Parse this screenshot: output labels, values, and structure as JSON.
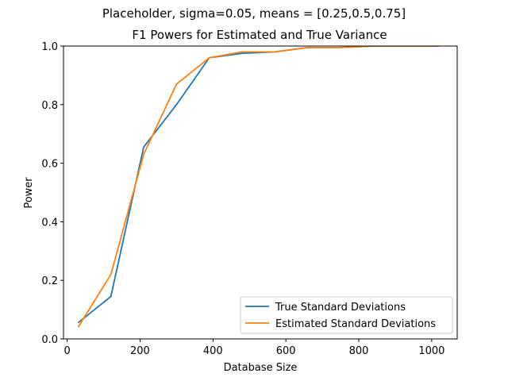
{
  "suptitle": "Placeholder, sigma=0.05, means = [0.25,0.5,0.75]",
  "chart_data": {
    "type": "line",
    "title": "F1 Powers for Estimated and True Variance",
    "xlabel": "Database Size",
    "ylabel": "Power",
    "xlim": [
      -10,
      1070
    ],
    "ylim": [
      0,
      1
    ],
    "x_ticks": [
      0,
      200,
      400,
      600,
      800,
      1000
    ],
    "y_ticks": [
      0.0,
      0.2,
      0.4,
      0.6,
      0.8,
      1.0
    ],
    "x_tick_labels": [
      "0",
      "200",
      "400",
      "600",
      "800",
      "1000"
    ],
    "y_tick_labels": [
      "0.0",
      "0.2",
      "0.4",
      "0.6",
      "0.8",
      "1.0"
    ],
    "legend_position": "lower-right",
    "series": [
      {
        "name": "True Standard Deviations",
        "color": "#1f77b4",
        "x": [
          30,
          120,
          210,
          300,
          390,
          480,
          570,
          660,
          750,
          840,
          930,
          1020
        ],
        "y": [
          0.055,
          0.145,
          0.655,
          0.8,
          0.96,
          0.975,
          0.98,
          0.995,
          0.995,
          1.0,
          1.0,
          1.0
        ]
      },
      {
        "name": "Estimated Standard Deviations",
        "color": "#ff7f0e",
        "x": [
          30,
          120,
          210,
          300,
          390,
          480,
          570,
          660,
          750,
          840,
          930,
          1020
        ],
        "y": [
          0.04,
          0.22,
          0.63,
          0.87,
          0.96,
          0.98,
          0.98,
          0.995,
          0.995,
          1.0,
          1.0,
          1.0
        ]
      }
    ]
  }
}
